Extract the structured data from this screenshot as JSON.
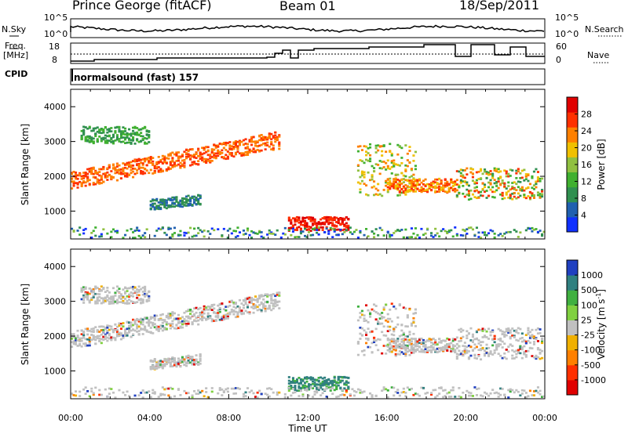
{
  "header": {
    "station": "Prince George (fitACF)",
    "beam": "Beam 01",
    "date": "18/Sep/2011"
  },
  "status_panels": {
    "nsky_label": "N.Sky",
    "nsearch_label": "N.Search",
    "noise_ticks": [
      "10^5",
      "10^0"
    ],
    "freq_label_1": "Freq.",
    "freq_label_2": "[MHz]",
    "freq_ticks": [
      "18",
      "8"
    ],
    "nave_label": "Nave",
    "nave_ticks": [
      "60",
      "0"
    ],
    "cpid_label": "CPID",
    "cpid_text": "normalsound (fast) 157"
  },
  "chart_data": [
    {
      "type": "heatmap",
      "name": "power",
      "ylabel": "Slant Range [km]",
      "xlabel": "",
      "xlim": [
        0,
        24
      ],
      "ylim": [
        200,
        4500
      ],
      "yticks": [
        "1000",
        "2000",
        "3000",
        "4000"
      ],
      "colorbar_label": "Power [dB]",
      "colorbar_ticks": [
        "4",
        "8",
        "12",
        "16",
        "20",
        "24",
        "28"
      ],
      "colors": [
        "#1030ff",
        "#2060b0",
        "#309050",
        "#40b030",
        "#90c040",
        "#f0c000",
        "#ff8000",
        "#ff3000",
        "#e00000"
      ]
    },
    {
      "type": "heatmap",
      "name": "velocity",
      "ylabel": "Slant Range [km]",
      "xlabel": "Time UT",
      "xlim": [
        0,
        24
      ],
      "ylim": [
        200,
        4500
      ],
      "yticks": [
        "1000",
        "2000",
        "3000",
        "4000"
      ],
      "xticks": [
        "00:00",
        "04:00",
        "08:00",
        "12:00",
        "16:00",
        "20:00",
        "00:00"
      ],
      "colorbar_label": "Velocity [m s",
      "colorbar_label_sup": "-1",
      "colorbar_label_end": "]",
      "colorbar_ticks": [
        "1000",
        "500",
        "100",
        "25",
        "-25",
        "-100",
        "-500",
        "-1000"
      ],
      "colors": [
        "#2040c0",
        "#308080",
        "#40b040",
        "#80d040",
        "#c0c0c0",
        "#f0b000",
        "#ff8000",
        "#ff3000",
        "#e00000"
      ]
    }
  ]
}
